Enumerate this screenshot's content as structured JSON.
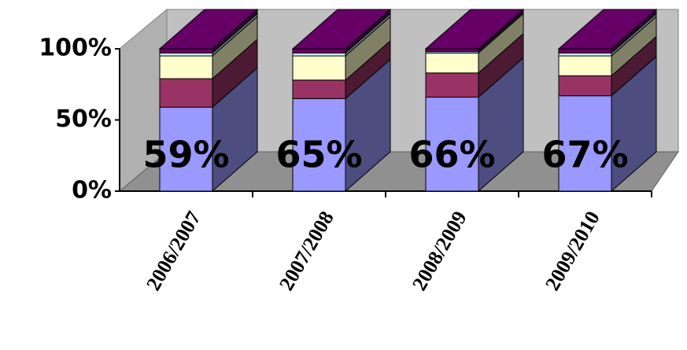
{
  "chart_data": {
    "type": "bar",
    "stacked": true,
    "categories": [
      "2006/2007",
      "2007/2008",
      "2008/2009",
      "2009/2010"
    ],
    "series": [
      {
        "color": "#9999ff",
        "values": [
          59,
          65,
          66,
          67
        ],
        "value_labels": [
          "59%",
          "65%",
          "66%",
          "67%"
        ]
      },
      {
        "color": "#993366",
        "values": [
          20,
          13,
          17,
          14
        ]
      },
      {
        "color": "#ffffcc",
        "values": [
          16,
          17,
          14,
          14
        ]
      },
      {
        "color": "#ccffff",
        "values": [
          2,
          2,
          1,
          2
        ]
      },
      {
        "color": "#660066",
        "values": [
          3,
          3,
          2,
          3
        ]
      }
    ],
    "ylim": [
      0,
      100
    ],
    "yticks": [
      {
        "value": 0,
        "label": "0%"
      },
      {
        "value": 50,
        "label": "50%"
      },
      {
        "value": 100,
        "label": "100%"
      }
    ]
  }
}
